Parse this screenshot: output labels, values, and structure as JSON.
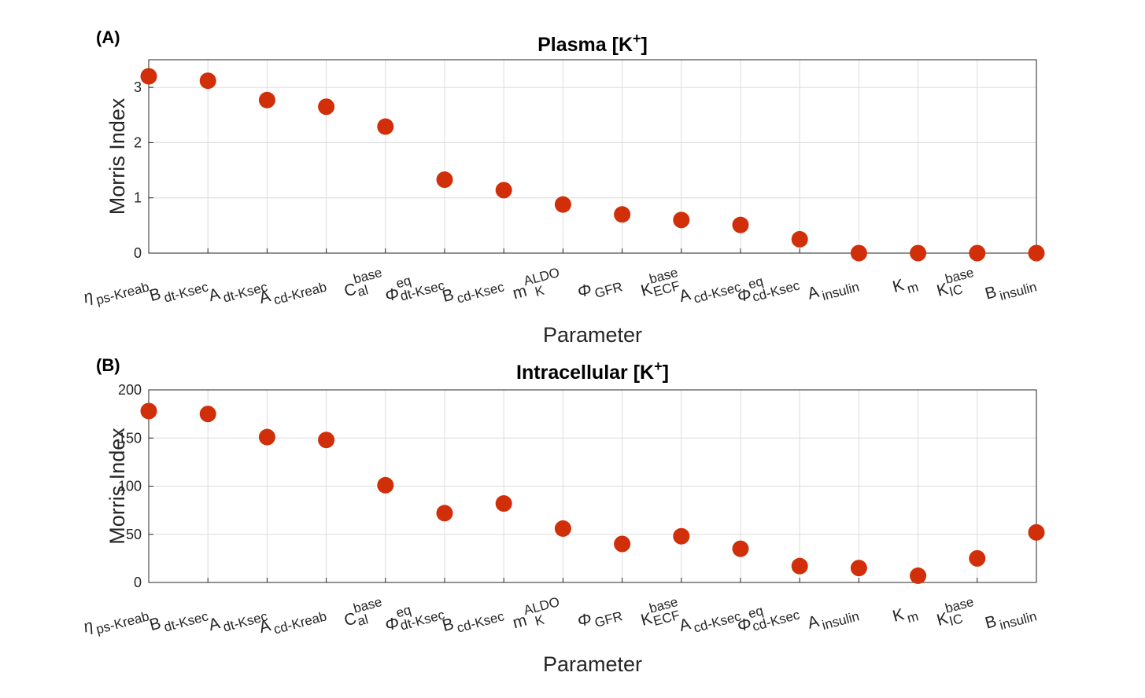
{
  "colors": {
    "marker": "#d12e0a",
    "axis": "#262626",
    "grid": "#dcdcdc"
  },
  "chart_data": [
    {
      "type": "scatter",
      "panel_label": "(A)",
      "title_text": "Plasma [K",
      "title_sup": "+",
      "title_end": "]",
      "xlabel": "Parameter",
      "ylabel": "Morris Index",
      "ylim": [
        0,
        3.5
      ],
      "yticks": [
        "0",
        "1",
        "2",
        "3"
      ],
      "grid": true,
      "categories": [
        {
          "base": "η",
          "sub": "ps-Kreab"
        },
        {
          "base": "B",
          "sub": "dt-Ksec"
        },
        {
          "base": "A",
          "sub": "dt-Ksec"
        },
        {
          "base": "A",
          "sub": "cd-Kreab"
        },
        {
          "base": "C",
          "sup": "base",
          "sub": "al"
        },
        {
          "base": "Φ",
          "sup": "eq",
          "sub": "dt-Ksec"
        },
        {
          "base": "B",
          "sub": "cd-Ksec"
        },
        {
          "base": "m",
          "sup": "ALDO",
          "sub": "K"
        },
        {
          "base": "Φ",
          "sub": "GFR"
        },
        {
          "base": "K",
          "sup": "base",
          "sub": "ECF"
        },
        {
          "base": "A",
          "sub": "cd-Ksec"
        },
        {
          "base": "Φ",
          "sup": "eq",
          "sub": "cd-Ksec"
        },
        {
          "base": "A",
          "sub": "insulin"
        },
        {
          "base": "K",
          "sub": "m"
        },
        {
          "base": "K",
          "sup": "base",
          "sub": "IC"
        },
        {
          "base": "B",
          "sub": "insulin"
        }
      ],
      "values": [
        3.2,
        3.12,
        2.77,
        2.65,
        2.29,
        1.33,
        1.14,
        0.88,
        0.7,
        0.6,
        0.51,
        0.25,
        0.0,
        0.0,
        0.0,
        0.0
      ]
    },
    {
      "type": "scatter",
      "panel_label": "(B)",
      "title_text": "Intracellular [K",
      "title_sup": "+",
      "title_end": "]",
      "xlabel": "Parameter",
      "ylabel": "Morris Index",
      "ylim": [
        0,
        200
      ],
      "yticks": [
        "0",
        "50",
        "100",
        "150",
        "200"
      ],
      "grid": true,
      "categories": [
        {
          "base": "η",
          "sub": "ps-Kreab"
        },
        {
          "base": "B",
          "sub": "dt-Ksec"
        },
        {
          "base": "A",
          "sub": "dt-Ksec"
        },
        {
          "base": "A",
          "sub": "cd-Kreab"
        },
        {
          "base": "C",
          "sup": "base",
          "sub": "al"
        },
        {
          "base": "Φ",
          "sup": "eq",
          "sub": "dt-Ksec"
        },
        {
          "base": "B",
          "sub": "cd-Ksec"
        },
        {
          "base": "m",
          "sup": "ALDO",
          "sub": "K"
        },
        {
          "base": "Φ",
          "sub": "GFR"
        },
        {
          "base": "K",
          "sup": "base",
          "sub": "ECF"
        },
        {
          "base": "A",
          "sub": "cd-Ksec"
        },
        {
          "base": "Φ",
          "sup": "eq",
          "sub": "cd-Ksec"
        },
        {
          "base": "A",
          "sub": "insulin"
        },
        {
          "base": "K",
          "sub": "m"
        },
        {
          "base": "K",
          "sup": "base",
          "sub": "IC"
        },
        {
          "base": "B",
          "sub": "insulin"
        }
      ],
      "values": [
        178,
        175,
        151,
        148,
        101,
        72,
        82,
        56,
        40,
        48,
        35,
        17,
        15,
        7,
        25,
        52
      ]
    }
  ]
}
